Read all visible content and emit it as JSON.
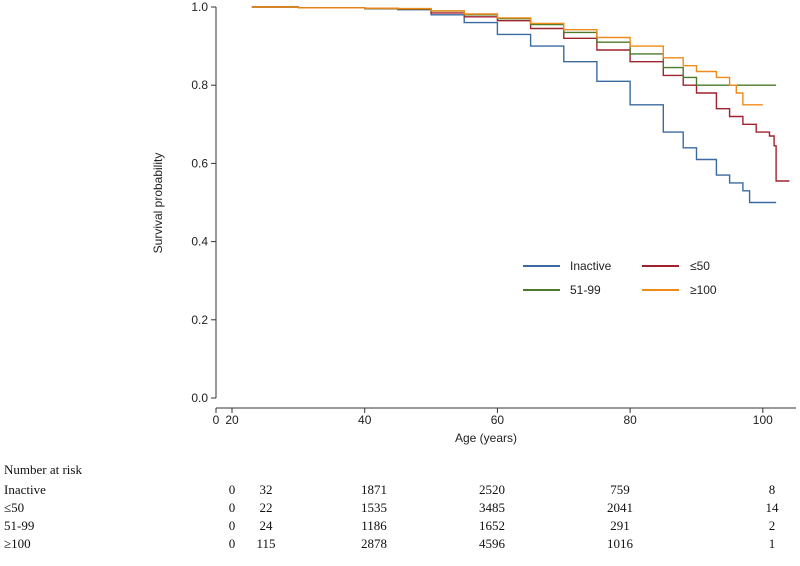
{
  "chart_data": {
    "type": "line",
    "subtype": "kaplan-meier",
    "xlabel": "Age (years)",
    "ylabel": "Survival probability",
    "xlim": [
      20,
      105
    ],
    "ylim": [
      0,
      1
    ],
    "x_ticks": [
      "0",
      "20",
      "40",
      "60",
      "80",
      "100"
    ],
    "y_ticks": [
      "0.0",
      "0.2",
      "0.4",
      "0.6",
      "0.8",
      "1.0"
    ],
    "legend": [
      "Inactive",
      "≤50",
      "51-99",
      "≥100"
    ],
    "series": [
      {
        "name": "Inactive",
        "color": "#3b6aa0",
        "points": [
          [
            23,
            1.0
          ],
          [
            30,
            0.998
          ],
          [
            40,
            0.996
          ],
          [
            45,
            0.993
          ],
          [
            50,
            0.98
          ],
          [
            55,
            0.96
          ],
          [
            60,
            0.93
          ],
          [
            65,
            0.9
          ],
          [
            70,
            0.86
          ],
          [
            75,
            0.81
          ],
          [
            80,
            0.75
          ],
          [
            85,
            0.68
          ],
          [
            88,
            0.64
          ],
          [
            90,
            0.61
          ],
          [
            93,
            0.57
          ],
          [
            95,
            0.55
          ],
          [
            97,
            0.53
          ],
          [
            98,
            0.5
          ],
          [
            102,
            0.5
          ]
        ]
      },
      {
        "name": "≤50",
        "color": "#a0222e",
        "points": [
          [
            23,
            1.0
          ],
          [
            30,
            0.998
          ],
          [
            40,
            0.996
          ],
          [
            45,
            0.994
          ],
          [
            50,
            0.985
          ],
          [
            55,
            0.975
          ],
          [
            60,
            0.965
          ],
          [
            65,
            0.945
          ],
          [
            70,
            0.92
          ],
          [
            75,
            0.89
          ],
          [
            80,
            0.86
          ],
          [
            85,
            0.825
          ],
          [
            88,
            0.8
          ],
          [
            90,
            0.78
          ],
          [
            93,
            0.74
          ],
          [
            95,
            0.72
          ],
          [
            97,
            0.7
          ],
          [
            99,
            0.68
          ],
          [
            101,
            0.67
          ],
          [
            101.7,
            0.645
          ],
          [
            102,
            0.555
          ],
          [
            104,
            0.555
          ]
        ]
      },
      {
        "name": "51-99",
        "color": "#4c7a2a",
        "points": [
          [
            23,
            1.0
          ],
          [
            30,
            0.998
          ],
          [
            40,
            0.996
          ],
          [
            45,
            0.995
          ],
          [
            50,
            0.99
          ],
          [
            55,
            0.98
          ],
          [
            60,
            0.97
          ],
          [
            65,
            0.955
          ],
          [
            70,
            0.935
          ],
          [
            75,
            0.91
          ],
          [
            80,
            0.88
          ],
          [
            85,
            0.845
          ],
          [
            88,
            0.82
          ],
          [
            90,
            0.8
          ],
          [
            102,
            0.8
          ]
        ]
      },
      {
        "name": "≥100",
        "color": "#f08a1a",
        "points": [
          [
            23,
            1.0
          ],
          [
            30,
            0.998
          ],
          [
            40,
            0.997
          ],
          [
            45,
            0.996
          ],
          [
            50,
            0.99
          ],
          [
            55,
            0.982
          ],
          [
            60,
            0.972
          ],
          [
            65,
            0.958
          ],
          [
            70,
            0.942
          ],
          [
            75,
            0.922
          ],
          [
            80,
            0.9
          ],
          [
            85,
            0.87
          ],
          [
            88,
            0.85
          ],
          [
            90,
            0.835
          ],
          [
            93,
            0.82
          ],
          [
            95,
            0.8
          ],
          [
            96,
            0.78
          ],
          [
            97,
            0.75
          ],
          [
            100,
            0.75
          ]
        ]
      }
    ]
  },
  "risk_table": {
    "title": "Number at risk",
    "rows": [
      {
        "label": "Inactive",
        "values": [
          "0",
          "32",
          "1871",
          "2520",
          "759",
          "8"
        ]
      },
      {
        "label": "≤50",
        "values": [
          "0",
          "22",
          "1535",
          "3485",
          "2041",
          "14"
        ]
      },
      {
        "label": "51-99",
        "values": [
          "0",
          "24",
          "1186",
          "1652",
          "291",
          "2"
        ]
      },
      {
        "label": "≥100",
        "values": [
          "0",
          "115",
          "2878",
          "4596",
          "1016",
          "1"
        ]
      }
    ]
  }
}
